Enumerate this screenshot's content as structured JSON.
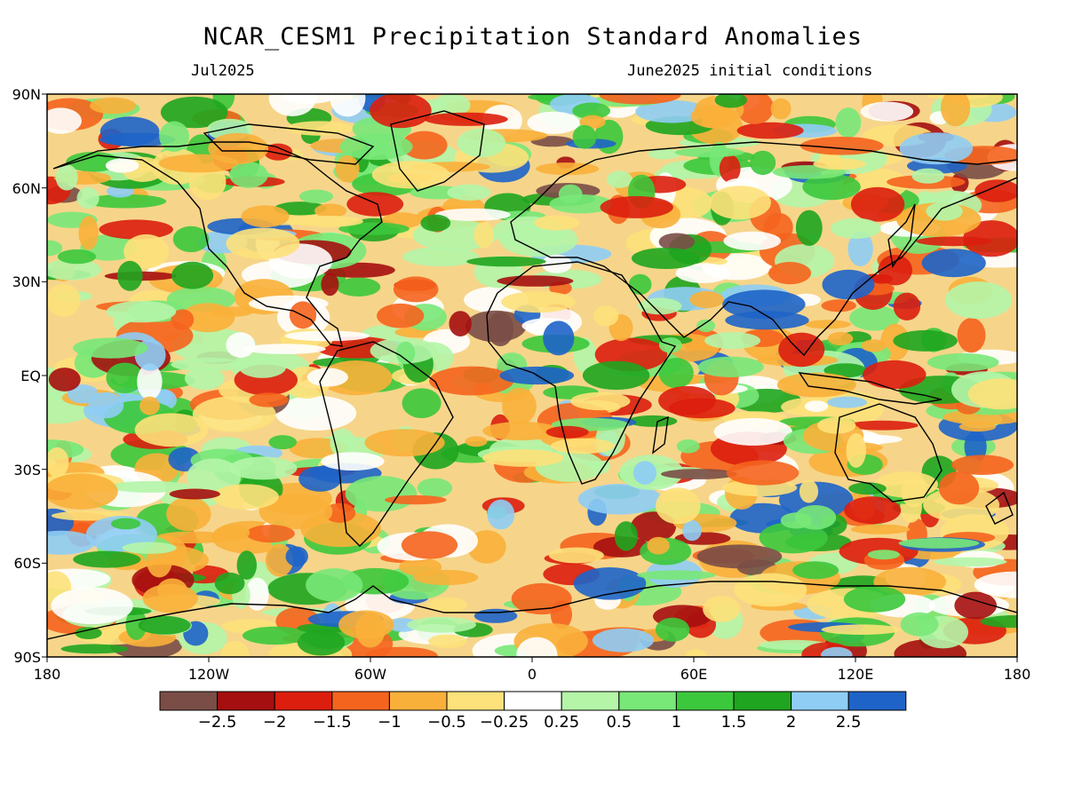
{
  "header": {
    "title": "NCAR_CESM1 Precipitation Standard Anomalies",
    "valid_month": "Jul2025",
    "init": "June2025 initial conditions"
  },
  "axes": {
    "lat_labels": [
      "90N",
      "60N",
      "30N",
      "EQ",
      "30S",
      "60S",
      "90S"
    ],
    "lon_labels": [
      "180",
      "120W",
      "60W",
      "0",
      "60E",
      "120E",
      "180"
    ]
  },
  "legend": {
    "colors": [
      "#7a4e47",
      "#a50f0f",
      "#dc1e0e",
      "#f5641e",
      "#f9b03a",
      "#fde17a",
      "#ffffff",
      "#b4f5a8",
      "#78e878",
      "#3cc83c",
      "#1fa51f",
      "#8fcdf5",
      "#1e64c8"
    ],
    "labels": [
      "−2.5",
      "−2",
      "−1.5",
      "−1",
      "−0.5",
      "−0.25",
      "0.25",
      "0.5",
      "1",
      "1.5",
      "2",
      "2.5"
    ]
  }
}
